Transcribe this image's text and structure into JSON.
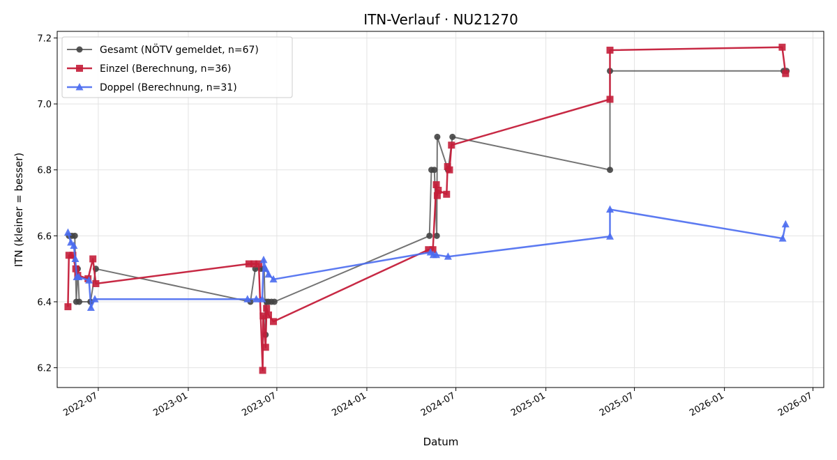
{
  "chart_data": {
    "type": "line",
    "title": "ITN-Verlauf · NU21270",
    "xlabel": "Datum",
    "ylabel": "ITN  (kleiner = besser)",
    "ylim": [
      6.14,
      7.22
    ],
    "xlim": [
      "2022-04-08",
      "2026-07-23"
    ],
    "x_ticks": [
      "2022-07-01",
      "2023-01-01",
      "2023-07-01",
      "2024-01-01",
      "2024-07-01",
      "2025-01-01",
      "2025-07-01",
      "2026-01-01",
      "2026-07-01"
    ],
    "x_tick_labels": [
      "2022-07",
      "2023-01",
      "2023-07",
      "2024-01",
      "2024-07",
      "2025-01",
      "2025-07",
      "2026-01",
      "2026-07"
    ],
    "y_ticks": [
      6.2,
      6.4,
      6.6,
      6.8,
      7.0,
      7.2
    ],
    "y_tick_labels": [
      "6.2",
      "6.4",
      "6.6",
      "6.8",
      "7.0",
      "7.2"
    ],
    "grid": true,
    "legend_position": "top-left",
    "series": [
      {
        "name": "Gesamt (NÖTV gemeldet, n=67)",
        "color": "#444444",
        "marker": "circle",
        "points": [
          [
            "2022-05-02",
            6.6
          ],
          [
            "2022-05-08",
            6.6
          ],
          [
            "2022-05-14",
            6.6
          ],
          [
            "2022-05-17",
            6.4
          ],
          [
            "2022-05-20",
            6.5
          ],
          [
            "2022-05-23",
            6.4
          ],
          [
            "2022-06-15",
            6.4
          ],
          [
            "2022-06-26",
            6.5
          ],
          [
            "2023-05-08",
            6.4
          ],
          [
            "2023-05-18",
            6.5
          ],
          [
            "2023-05-30",
            6.5
          ],
          [
            "2023-06-05",
            6.5
          ],
          [
            "2023-06-08",
            6.3
          ],
          [
            "2023-06-10",
            6.4
          ],
          [
            "2023-06-14",
            6.4
          ],
          [
            "2023-06-20",
            6.4
          ],
          [
            "2023-06-26",
            6.4
          ],
          [
            "2024-05-08",
            6.6
          ],
          [
            "2024-05-12",
            6.8
          ],
          [
            "2024-05-18",
            6.8
          ],
          [
            "2024-05-23",
            6.6
          ],
          [
            "2024-05-24",
            6.9
          ],
          [
            "2024-06-15",
            6.8
          ],
          [
            "2024-06-24",
            6.9
          ],
          [
            "2025-05-12",
            6.8
          ],
          [
            "2025-05-12",
            7.1
          ],
          [
            "2026-05-02",
            7.1
          ],
          [
            "2026-05-08",
            7.1
          ]
        ]
      },
      {
        "name": "Einzel (Berechnung, n=36)",
        "color": "#c41e3a",
        "marker": "square",
        "points": [
          [
            "2022-04-30",
            6.385
          ],
          [
            "2022-05-02",
            6.541
          ],
          [
            "2022-05-10",
            6.541
          ],
          [
            "2022-05-16",
            6.5
          ],
          [
            "2022-05-20",
            6.48
          ],
          [
            "2022-06-10",
            6.47
          ],
          [
            "2022-06-20",
            6.53
          ],
          [
            "2022-06-26",
            6.455
          ],
          [
            "2023-05-05",
            6.515
          ],
          [
            "2023-05-15",
            6.515
          ],
          [
            "2023-05-25",
            6.515
          ],
          [
            "2023-06-02",
            6.192
          ],
          [
            "2023-06-03",
            6.357
          ],
          [
            "2023-06-08",
            6.262
          ],
          [
            "2023-06-10",
            6.38
          ],
          [
            "2023-06-14",
            6.36
          ],
          [
            "2023-06-24",
            6.34
          ],
          [
            "2024-05-06",
            6.558
          ],
          [
            "2024-05-15",
            6.558
          ],
          [
            "2024-05-22",
            6.755
          ],
          [
            "2024-05-24",
            6.722
          ],
          [
            "2024-05-26",
            6.738
          ],
          [
            "2024-06-12",
            6.726
          ],
          [
            "2024-06-14",
            6.81
          ],
          [
            "2024-06-18",
            6.8
          ],
          [
            "2024-06-22",
            6.875
          ],
          [
            "2025-05-12",
            7.014
          ],
          [
            "2025-05-12",
            7.163
          ],
          [
            "2026-04-29",
            7.172
          ],
          [
            "2026-05-06",
            7.092
          ]
        ]
      },
      {
        "name": "Doppel (Berechnung, n=31)",
        "color": "#4a6cf0",
        "marker": "triangle",
        "points": [
          [
            "2022-04-30",
            6.61
          ],
          [
            "2022-05-06",
            6.58
          ],
          [
            "2022-05-12",
            6.57
          ],
          [
            "2022-05-15",
            6.53
          ],
          [
            "2022-05-18",
            6.475
          ],
          [
            "2022-05-22",
            6.475
          ],
          [
            "2022-06-12",
            6.465
          ],
          [
            "2022-06-16",
            6.382
          ],
          [
            "2022-06-24",
            6.408
          ],
          [
            "2023-05-02",
            6.408
          ],
          [
            "2023-05-20",
            6.408
          ],
          [
            "2023-06-01",
            6.408
          ],
          [
            "2023-06-04",
            6.527
          ],
          [
            "2023-06-08",
            6.5
          ],
          [
            "2023-06-14",
            6.483
          ],
          [
            "2023-06-24",
            6.468
          ],
          [
            "2024-05-10",
            6.55
          ],
          [
            "2024-05-16",
            6.542
          ],
          [
            "2024-05-22",
            6.542
          ],
          [
            "2024-06-15",
            6.537
          ],
          [
            "2025-05-12",
            6.598
          ],
          [
            "2025-05-12",
            6.68
          ],
          [
            "2026-04-30",
            6.592
          ],
          [
            "2026-05-06",
            6.635
          ]
        ]
      }
    ]
  }
}
